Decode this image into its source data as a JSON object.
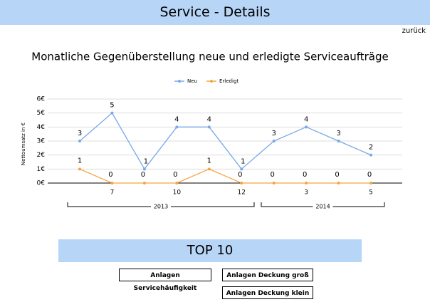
{
  "header": {
    "title": "Service - Details",
    "back": "zurück"
  },
  "chart_data": {
    "type": "line",
    "title": "Monatliche Gegenüberstellung neue und erledigte Serviceaufträge",
    "y_label": "Nettoumsatz in €",
    "categories": [
      null,
      "7",
      null,
      "10",
      null,
      "12",
      null,
      "3",
      null,
      "5"
    ],
    "year_labels": [
      "2013",
      "2014"
    ],
    "series": [
      {
        "name": "Neu",
        "color": "#78a9e6",
        "values": [
          3,
          5,
          1,
          4,
          4,
          1,
          3,
          4,
          3,
          2
        ]
      },
      {
        "name": "Erledigt",
        "color": "#f5a540",
        "values": [
          1,
          0,
          0,
          0,
          1,
          0,
          0,
          0,
          0,
          0
        ]
      }
    ],
    "ylim": [
      0,
      6
    ],
    "yticks": [
      {
        "value": 0,
        "label": "0€"
      },
      {
        "value": 1,
        "label": "1€"
      },
      {
        "value": 2,
        "label": "2€"
      },
      {
        "value": 3,
        "label": "3€"
      },
      {
        "value": 4,
        "label": "4€"
      },
      {
        "value": 5,
        "label": "5€"
      },
      {
        "value": 6,
        "label": "6€"
      }
    ],
    "grid": true,
    "legend": "top"
  },
  "top10": {
    "title": "TOP 10",
    "buttons": [
      "Anlagen Servicehäufigkeit",
      "Anlagen Deckung groß",
      "Anlagen Deckung klein"
    ]
  }
}
